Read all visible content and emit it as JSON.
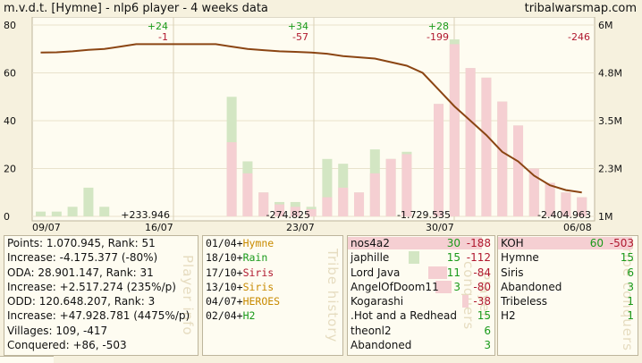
{
  "header": {
    "title": "m.v.d.t. [Hymne] - nlp6 player  - 4 weeks data",
    "site": "tribalwarsmap.com"
  },
  "colors": {
    "line": "#8b4513",
    "bar_pink": "#f5cfd2",
    "bar_green": "#d3e6c3",
    "positive": "#1a9a1a",
    "negative": "#b0182e",
    "background": "#fefcf1"
  },
  "chart_data": {
    "type": "bar",
    "x_tick_labels": [
      "09/07",
      "16/07",
      "23/07",
      "30/07",
      "06/08"
    ],
    "y_left_ticks": [
      "0",
      "20",
      "40",
      "60",
      "80"
    ],
    "ylim_left": [
      0,
      80
    ],
    "y_right_ticks": [
      "1M",
      "2.3M",
      "3.5M",
      "4.8M",
      "6M"
    ],
    "ylim_right": [
      "1M",
      "6M"
    ],
    "series": [
      {
        "name": "bars_loss",
        "color": "#f5cfd2",
        "values": [
          0,
          0,
          0,
          0,
          0,
          0,
          0,
          0,
          0,
          0,
          0,
          0,
          31,
          18,
          10,
          5,
          4,
          3,
          8,
          12,
          10,
          18,
          24,
          26,
          0,
          47,
          72,
          62,
          58,
          48,
          38,
          20,
          14,
          10,
          8
        ]
      },
      {
        "name": "bars_gain",
        "color": "#d3e6c3",
        "values": [
          2,
          2,
          4,
          12,
          4,
          0,
          0,
          0,
          0,
          0,
          0,
          0,
          50,
          23,
          10,
          6,
          6,
          4,
          24,
          22,
          10,
          28,
          24,
          27,
          0,
          47,
          74,
          62,
          58,
          48,
          38,
          20,
          14,
          10,
          8
        ]
      },
      {
        "name": "points_line",
        "color": "#8b4513",
        "values": [
          68.5,
          68.6,
          69,
          69.6,
          70,
          71,
          72,
          72,
          72,
          72,
          72,
          72,
          71,
          70,
          69.5,
          69,
          68.8,
          68.5,
          68,
          67,
          66.5,
          66,
          64.5,
          63,
          60,
          53,
          46,
          40,
          34,
          27,
          23,
          17,
          13,
          11,
          10
        ]
      }
    ],
    "annotations": {
      "top": [
        {
          "text": "+24",
          "sub": "-1"
        },
        {
          "text": "+34",
          "sub": "-57"
        },
        {
          "text": "+28",
          "sub": "-199"
        },
        {
          "text": "",
          "sub": "-246"
        }
      ],
      "bottom": [
        "+233.946",
        "-274.825",
        "-1.729.535",
        "-2.404.963"
      ]
    }
  },
  "player_info": {
    "label": "Player info",
    "lines": [
      "Points: 1.070.945, Rank: 51",
      "Increase: -4.175.377 (-80%)",
      "ODA: 28.901.147, Rank: 31",
      "Increase: +2.517.274 (235%/p)",
      "ODD: 120.648.207, Rank: 3",
      "Increase: +47.928.781 (4475%/p)",
      "Villages: 109, -417",
      "Conquered: +86, -503"
    ]
  },
  "tribe_history": {
    "label": "Tribe history",
    "entries": [
      {
        "date": "01/04",
        "plus": "+",
        "name": "Hymne",
        "color": "#c88a00"
      },
      {
        "date": "18/10",
        "plus": "+",
        "name": "Rain",
        "color": "#1a9a1a"
      },
      {
        "date": "17/10",
        "plus": "+",
        "name": "Siris",
        "color": "#b0182e"
      },
      {
        "date": "13/10",
        "plus": "+",
        "name": "Siris",
        "color": "#c88a00"
      },
      {
        "date": "04/07",
        "plus": "+",
        "name": "HEROES",
        "color": "#c88a00"
      },
      {
        "date": "02/04",
        "plus": "+",
        "name": "H2",
        "color": "#1a9a1a"
      }
    ]
  },
  "player_conquers": {
    "label": "Player conquers",
    "rows": [
      {
        "name": "nos4a2",
        "plus": "30",
        "minus": "-188",
        "pink": 1.0,
        "green": 0.0,
        "header": true
      },
      {
        "name": "japhille",
        "plus": "15",
        "minus": "-112",
        "pink": 0.0,
        "green": 0.5
      },
      {
        "name": "Lord Java",
        "plus": "11",
        "minus": "-84",
        "pink": 0.4,
        "green": 0.0
      },
      {
        "name": "AngelOfDoom11",
        "plus": "3",
        "minus": "-80",
        "pink": 0.35,
        "green": 0.0
      },
      {
        "name": "Kogarashi",
        "plus": "",
        "minus": "-38",
        "pink": 0.15,
        "green": 0.0
      },
      {
        "name": ".Hot and a Redhead",
        "plus": "15",
        "minus": "",
        "pink": 0.0,
        "green": 0.0
      },
      {
        "name": "theonl2",
        "plus": "6",
        "minus": "",
        "pink": 0.0,
        "green": 0.0
      },
      {
        "name": "Abandoned",
        "plus": "3",
        "minus": "",
        "pink": 0.0,
        "green": 0.0
      }
    ]
  },
  "tribe_conquers": {
    "label": "Tribe conquers",
    "rows": [
      {
        "name": "KOH",
        "plus": "60",
        "minus": "-503",
        "header": true
      },
      {
        "name": "Hymne",
        "plus": "15",
        "minus": ""
      },
      {
        "name": "Siris",
        "plus": "6",
        "minus": ""
      },
      {
        "name": "Abandoned",
        "plus": "3",
        "minus": ""
      },
      {
        "name": "Tribeless",
        "plus": "1",
        "minus": ""
      },
      {
        "name": "H2",
        "plus": "1",
        "minus": ""
      }
    ]
  }
}
